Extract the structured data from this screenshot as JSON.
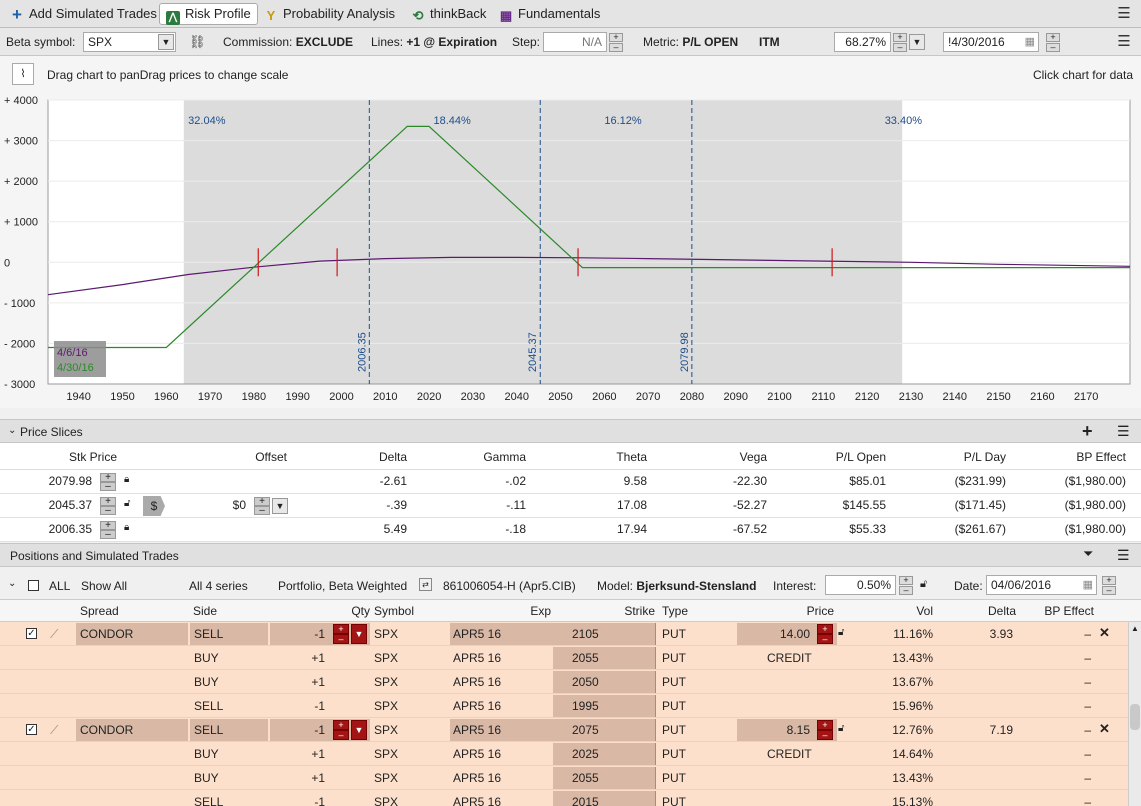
{
  "tabs": [
    {
      "label": "Add Simulated Trades",
      "icon": "plus-icon"
    },
    {
      "label": "Risk Profile",
      "icon": "risk-profile-icon"
    },
    {
      "label": "Probability Analysis",
      "icon": "probability-icon"
    },
    {
      "label": "thinkBack",
      "icon": "history-icon"
    },
    {
      "label": "Fundamentals",
      "icon": "fundamentals-icon"
    }
  ],
  "controls": {
    "beta_label": "Beta symbol:",
    "beta_value": "SPX",
    "commission_label": "Commission:",
    "commission_value": "EXCLUDE",
    "lines_label": "Lines:",
    "lines_value": "+1 @ Expiration",
    "step_label": "Step:",
    "step_value": "N/A",
    "metric_label": "Metric:",
    "metric_value": "P/L OPEN",
    "itm_label": "ITM",
    "pct_value": "68.27%",
    "date_value": "!4/30/2016"
  },
  "hint": {
    "left": "Drag chart to panDrag prices to change scale",
    "right": "Click chart for data"
  },
  "chart_data": {
    "type": "line",
    "x_ticks": [
      1940,
      1950,
      1960,
      1970,
      1980,
      1990,
      2000,
      2010,
      2020,
      2030,
      2040,
      2050,
      2060,
      2070,
      2080,
      2090,
      2100,
      2110,
      2120,
      2130,
      2140,
      2150,
      2160,
      2170
    ],
    "y_ticks": [
      "+ 4000",
      "+ 3000",
      "+ 2000",
      "+ 1000",
      "0",
      "- 1000",
      "- 2000",
      "- 3000"
    ],
    "xlim": [
      1933,
      2180
    ],
    "ylim": [
      -3000,
      4000
    ],
    "probability_zones": [
      "32.04%",
      "18.44%",
      "16.12%",
      "33.40%"
    ],
    "price_markers": [
      "2006.35",
      "2045.37",
      "2079.98"
    ],
    "legend": [
      "4/6/16",
      "4/30/16"
    ],
    "colors": {
      "today": "#5b1a6e",
      "expiration": "#2a8a2a",
      "marker": "#1e4e8a"
    },
    "series": [
      {
        "name": "4/6/16",
        "x": [
          1933,
          1950,
          1965,
          1980,
          1995,
          2010,
          2025,
          2040,
          2055,
          2070,
          2090,
          2110,
          2130,
          2150,
          2180
        ],
        "y": [
          -800,
          -550,
          -300,
          -120,
          30,
          90,
          120,
          120,
          110,
          90,
          60,
          30,
          0,
          -50,
          -100
        ]
      },
      {
        "name": "4/30/16",
        "x": [
          1933,
          1960,
          2015,
          2020,
          2055,
          2180
        ],
        "y": [
          -2100,
          -2100,
          3350,
          3350,
          -130,
          -130
        ]
      }
    ]
  },
  "slices": {
    "title": "Price Slices",
    "columns": [
      "Stk Price",
      "Offset",
      "Delta",
      "Gamma",
      "Theta",
      "Vega",
      "P/L Open",
      "P/L Day",
      "BP Effect"
    ],
    "rows": [
      {
        "stk": "2079.98",
        "offset": "",
        "delta": "-2.61",
        "gamma": "-.02",
        "theta": "9.58",
        "vega": "-22.30",
        "plopen": "$85.01",
        "plday": "($231.99)",
        "bp": "($1,980.00)"
      },
      {
        "stk": "2045.37",
        "offset": "$0",
        "delta": "-.39",
        "gamma": "-.11",
        "theta": "17.08",
        "vega": "-52.27",
        "plopen": "$145.55",
        "plday": "($171.45)",
        "bp": "($1,980.00)"
      },
      {
        "stk": "2006.35",
        "offset": "",
        "delta": "5.49",
        "gamma": "-.18",
        "theta": "17.94",
        "vega": "-67.52",
        "plopen": "$55.33",
        "plday": "($261.67)",
        "bp": "($1,980.00)"
      }
    ]
  },
  "positions": {
    "title": "Positions and Simulated Trades",
    "filter_all": "ALL",
    "show_all": "Show All",
    "series": "All 4 series",
    "portfolio": "Portfolio, Beta Weighted",
    "account": "861006054-H (Apr5.CIB)",
    "model_label": "Model:",
    "model_value": "Bjerksund-Stensland",
    "interest_label": "Interest:",
    "interest_value": "0.50%",
    "date_label": "Date:",
    "date_value": "04/06/2016",
    "columns": [
      "Spread",
      "Side",
      "Qty",
      "Symbol",
      "Exp",
      "Strike",
      "Type",
      "Price",
      "Vol",
      "Delta",
      "BP Effect"
    ],
    "rows": [
      {
        "spread": "CONDOR",
        "side": "SELL",
        "qty": "-1",
        "symbol": "SPX",
        "exp": "APR5 16",
        "strike": "2105",
        "type": "PUT",
        "price": "14.00",
        "vol": "11.16%",
        "delta": "3.93",
        "bp": "–",
        "first": true
      },
      {
        "spread": "",
        "side": "BUY",
        "qty": "+1",
        "symbol": "SPX",
        "exp": "APR5 16",
        "strike": "2055",
        "type": "PUT",
        "price": "CREDIT",
        "vol": "13.43%",
        "delta": "",
        "bp": "–"
      },
      {
        "spread": "",
        "side": "BUY",
        "qty": "+1",
        "symbol": "SPX",
        "exp": "APR5 16",
        "strike": "2050",
        "type": "PUT",
        "price": "",
        "vol": "13.67%",
        "delta": "",
        "bp": "–"
      },
      {
        "spread": "",
        "side": "SELL",
        "qty": "-1",
        "symbol": "SPX",
        "exp": "APR5 16",
        "strike": "1995",
        "type": "PUT",
        "price": "",
        "vol": "15.96%",
        "delta": "",
        "bp": "–"
      },
      {
        "spread": "CONDOR",
        "side": "SELL",
        "qty": "-1",
        "symbol": "SPX",
        "exp": "APR5 16",
        "strike": "2075",
        "type": "PUT",
        "price": "8.15",
        "vol": "12.76%",
        "delta": "7.19",
        "bp": "–",
        "first": true
      },
      {
        "spread": "",
        "side": "BUY",
        "qty": "+1",
        "symbol": "SPX",
        "exp": "APR5 16",
        "strike": "2025",
        "type": "PUT",
        "price": "CREDIT",
        "vol": "14.64%",
        "delta": "",
        "bp": "–"
      },
      {
        "spread": "",
        "side": "BUY",
        "qty": "+1",
        "symbol": "SPX",
        "exp": "APR5 16",
        "strike": "2055",
        "type": "PUT",
        "price": "",
        "vol": "13.43%",
        "delta": "",
        "bp": "–"
      },
      {
        "spread": "",
        "side": "SELL",
        "qty": "-1",
        "symbol": "SPX",
        "exp": "APR5 16",
        "strike": "2015",
        "type": "PUT",
        "price": "",
        "vol": "15.13%",
        "delta": "",
        "bp": "–"
      }
    ]
  }
}
